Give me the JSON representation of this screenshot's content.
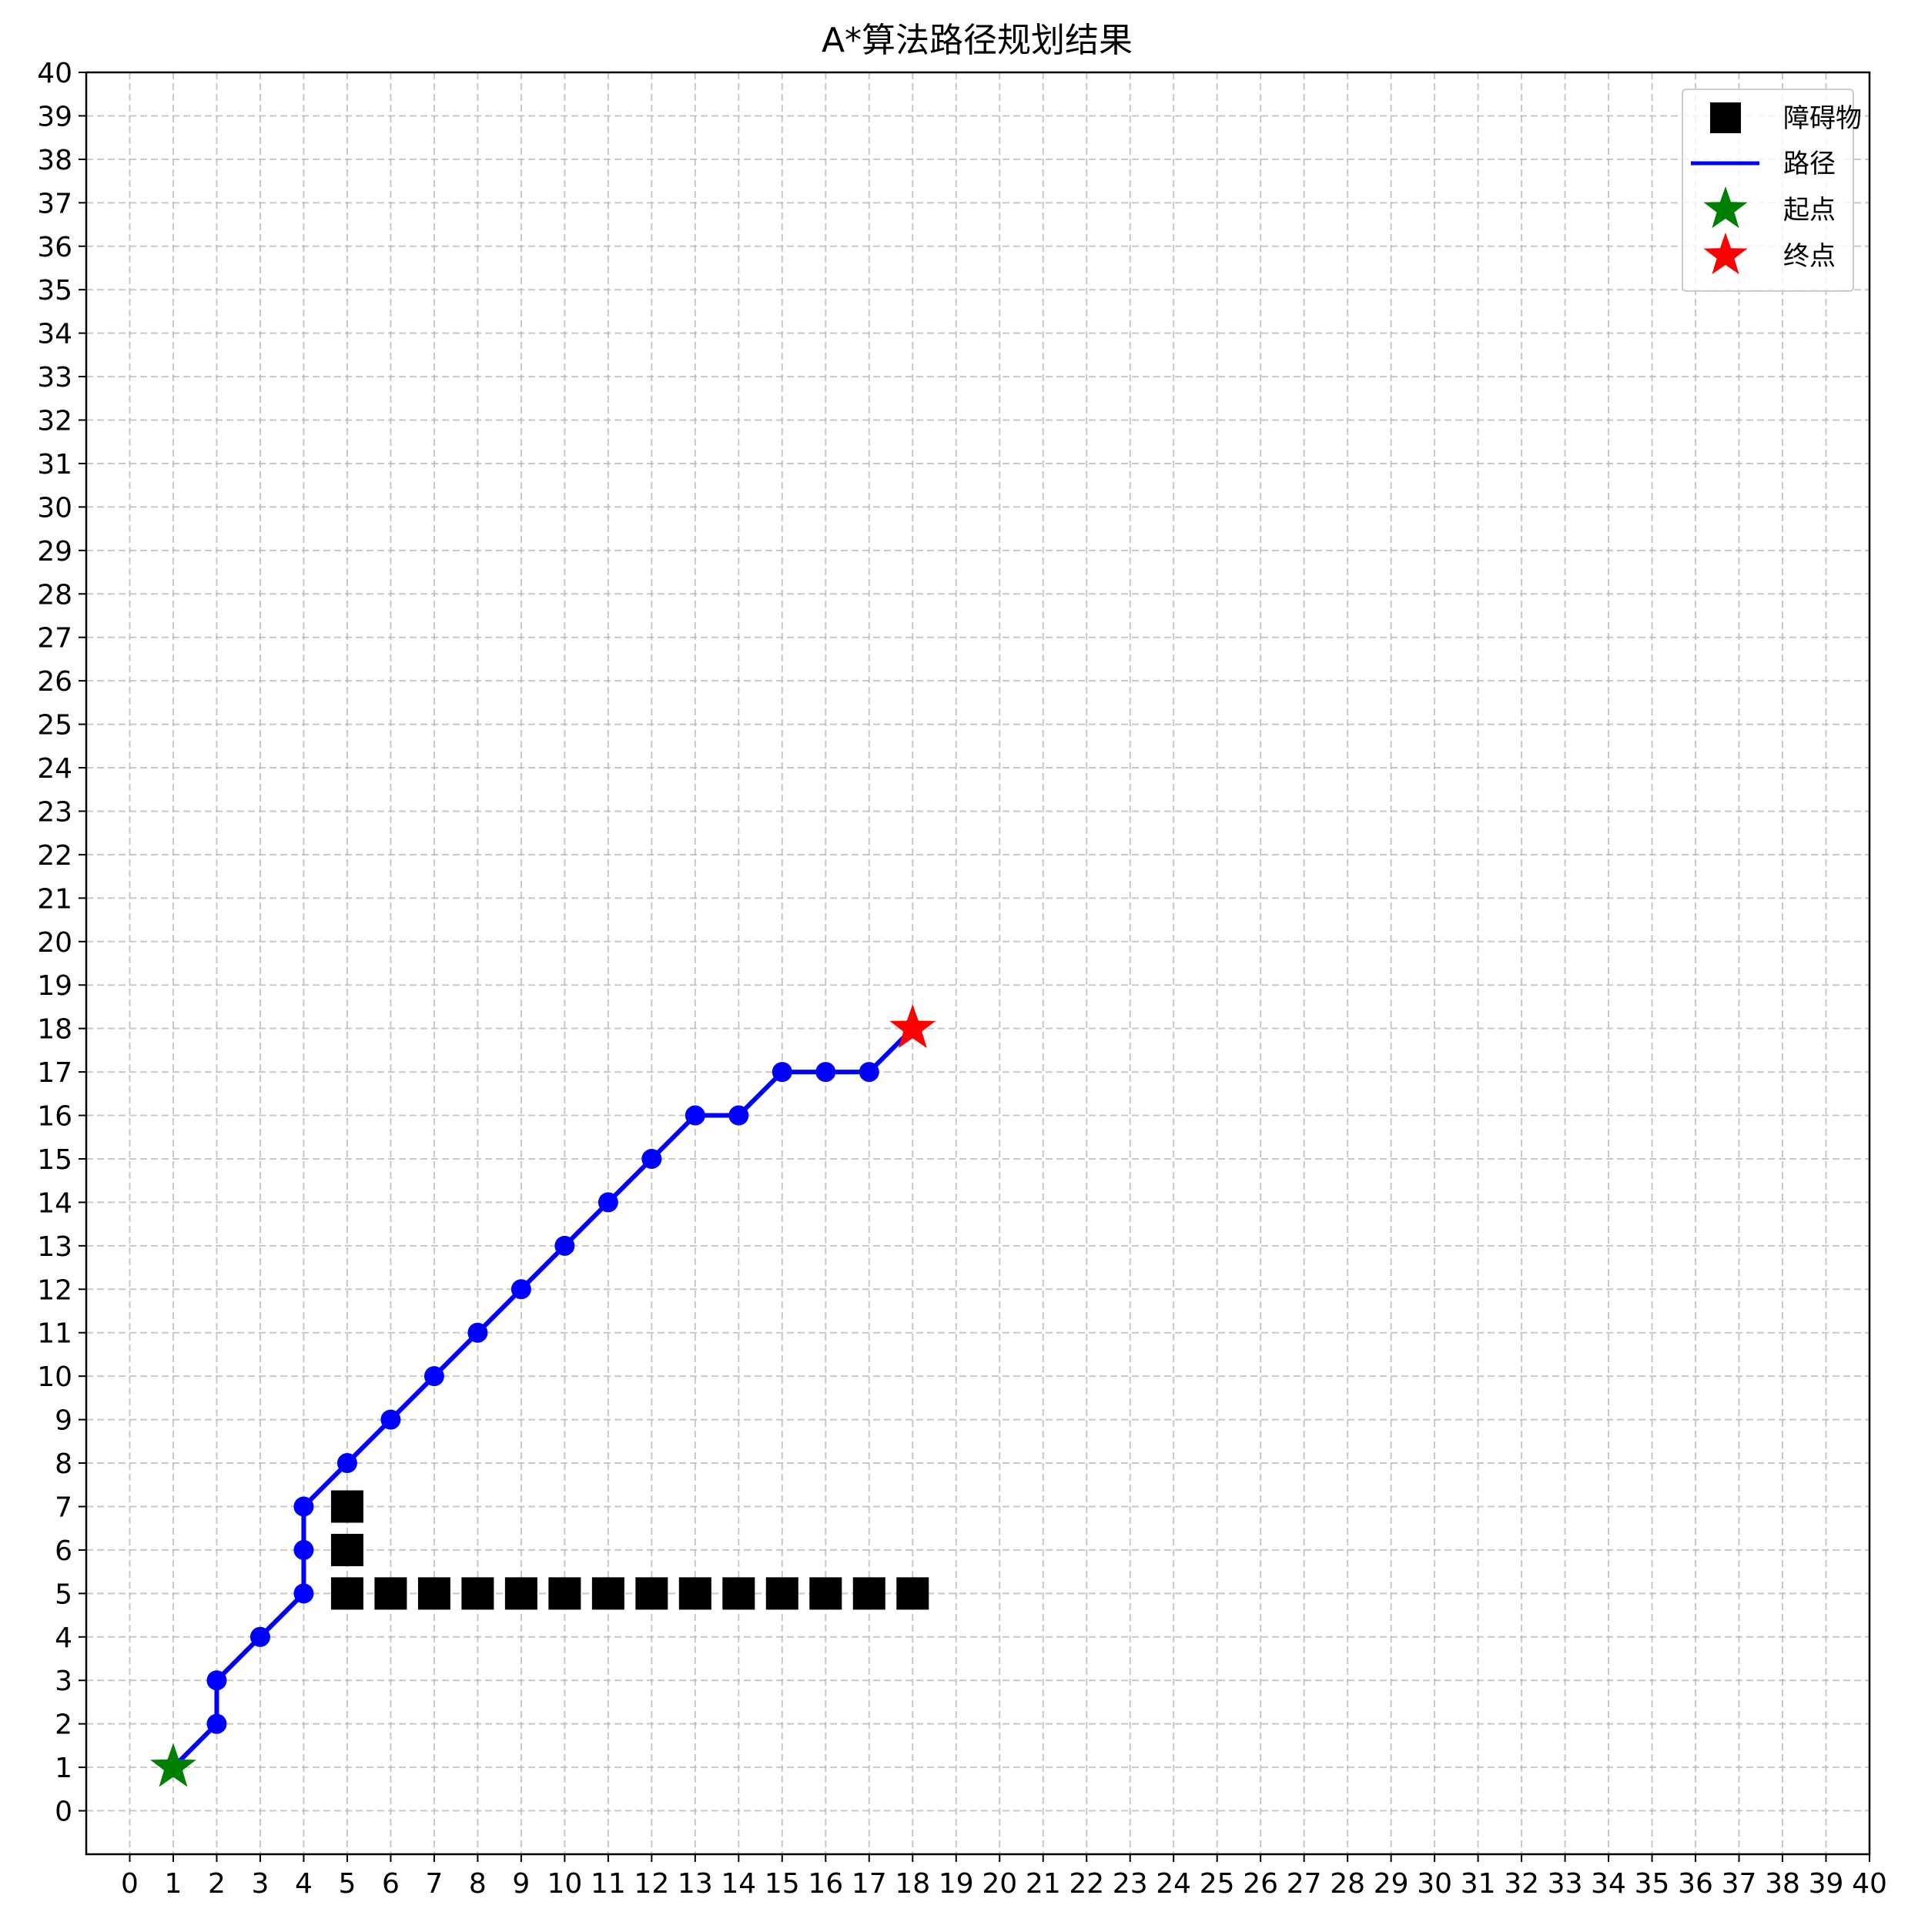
{
  "chart_data": {
    "type": "scatter",
    "title": "A*算法路径规划结果",
    "xlabel": "",
    "ylabel": "",
    "xlim": [
      -1,
      40
    ],
    "ylim": [
      -1,
      40
    ],
    "x_ticks": [
      0,
      1,
      2,
      3,
      4,
      5,
      6,
      7,
      8,
      9,
      10,
      11,
      12,
      13,
      14,
      15,
      16,
      17,
      18,
      19,
      20,
      21,
      22,
      23,
      24,
      25,
      26,
      27,
      28,
      29,
      30,
      31,
      32,
      33,
      34,
      35,
      36,
      37,
      38,
      39,
      40
    ],
    "y_ticks": [
      0,
      1,
      2,
      3,
      4,
      5,
      6,
      7,
      8,
      9,
      10,
      11,
      12,
      13,
      14,
      15,
      16,
      17,
      18,
      19,
      20,
      21,
      22,
      23,
      24,
      25,
      26,
      27,
      28,
      29,
      30,
      31,
      32,
      33,
      34,
      35,
      36,
      37,
      38,
      39,
      40
    ],
    "grid": true,
    "legend_position": "top-right",
    "legend": {
      "obstacle": "障碍物",
      "path": "路径",
      "start": "起点",
      "goal": "终点"
    },
    "obstacles": [
      [
        5,
        5
      ],
      [
        6,
        5
      ],
      [
        7,
        5
      ],
      [
        8,
        5
      ],
      [
        9,
        5
      ],
      [
        10,
        5
      ],
      [
        11,
        5
      ],
      [
        12,
        5
      ],
      [
        13,
        5
      ],
      [
        14,
        5
      ],
      [
        15,
        5
      ],
      [
        16,
        5
      ],
      [
        17,
        5
      ],
      [
        18,
        5
      ],
      [
        5,
        6
      ],
      [
        5,
        7
      ]
    ],
    "path": [
      [
        1,
        1
      ],
      [
        2,
        2
      ],
      [
        2,
        3
      ],
      [
        3,
        4
      ],
      [
        4,
        5
      ],
      [
        4,
        6
      ],
      [
        4,
        7
      ],
      [
        5,
        8
      ],
      [
        6,
        9
      ],
      [
        7,
        10
      ],
      [
        8,
        11
      ],
      [
        9,
        12
      ],
      [
        10,
        13
      ],
      [
        11,
        14
      ],
      [
        12,
        15
      ],
      [
        13,
        16
      ],
      [
        14,
        16
      ],
      [
        15,
        17
      ],
      [
        16,
        17
      ],
      [
        17,
        17
      ],
      [
        18,
        18
      ]
    ],
    "start": [
      1,
      1
    ],
    "goal": [
      18,
      18
    ],
    "colors": {
      "path": "#0000ff",
      "obstacle": "#000000",
      "start": "#008000",
      "goal": "#ff0000",
      "grid": "#b0b0b0"
    }
  }
}
